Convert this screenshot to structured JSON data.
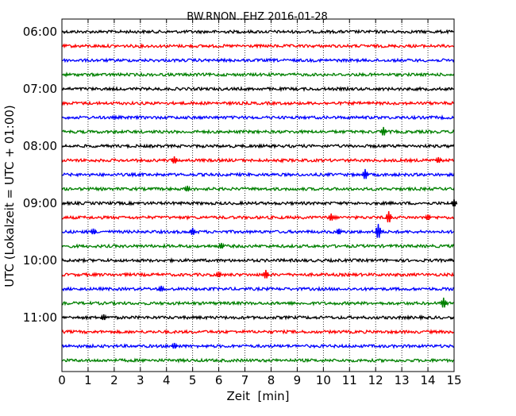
{
  "chart_data": {
    "type": "line",
    "title": "BW.RNON..EHZ 2016-01-28",
    "xlabel": "Zeit  [min]",
    "ylabel": "UTC (Lokalzeit = UTC + 01:00)",
    "xlim": [
      0,
      15
    ],
    "x_ticks": [
      "0",
      "1",
      "2",
      "3",
      "4",
      "5",
      "6",
      "7",
      "8",
      "9",
      "10",
      "11",
      "12",
      "13",
      "14",
      "15"
    ],
    "y_tick_labels": [
      "06:00",
      "07:00",
      "08:00",
      "09:00",
      "10:00",
      "11:00"
    ],
    "grid": true,
    "trace_colors": [
      "#000000",
      "#ff0000",
      "#0000ff",
      "#008000"
    ],
    "traces_start": "06:00",
    "traces_end": "11:45",
    "trace_interval_min": 15,
    "events": [
      {
        "trace": "07:45",
        "x": 12.3,
        "amp": 6
      },
      {
        "trace": "08:15",
        "x": 4.3,
        "amp": 5
      },
      {
        "trace": "08:15",
        "x": 14.4,
        "amp": 4
      },
      {
        "trace": "08:30",
        "x": 11.6,
        "amp": 7
      },
      {
        "trace": "08:45",
        "x": 4.8,
        "amp": 4
      },
      {
        "trace": "09:00",
        "x": 15.0,
        "amp": 5
      },
      {
        "trace": "09:15",
        "x": 10.3,
        "amp": 5
      },
      {
        "trace": "09:15",
        "x": 12.5,
        "amp": 8
      },
      {
        "trace": "09:15",
        "x": 14.0,
        "amp": 4
      },
      {
        "trace": "09:30",
        "x": 1.2,
        "amp": 4
      },
      {
        "trace": "09:30",
        "x": 5.0,
        "amp": 5
      },
      {
        "trace": "09:30",
        "x": 10.6,
        "amp": 4
      },
      {
        "trace": "09:30",
        "x": 12.1,
        "amp": 10
      },
      {
        "trace": "09:45",
        "x": 6.1,
        "amp": 4
      },
      {
        "trace": "10:15",
        "x": 7.8,
        "amp": 6
      },
      {
        "trace": "10:15",
        "x": 6.0,
        "amp": 4
      },
      {
        "trace": "10:30",
        "x": 3.8,
        "amp": 4
      },
      {
        "trace": "10:45",
        "x": 14.6,
        "amp": 7
      },
      {
        "trace": "11:00",
        "x": 1.6,
        "amp": 4
      },
      {
        "trace": "11:30",
        "x": 4.3,
        "amp": 4
      }
    ]
  }
}
